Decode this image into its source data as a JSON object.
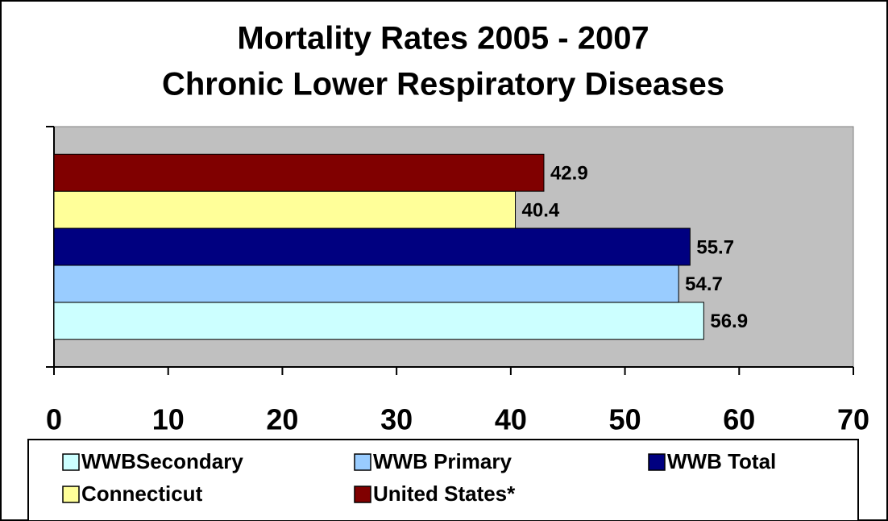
{
  "chart_data": {
    "type": "hbar",
    "title": "Mortality Rates 2005 - 2007",
    "subtitle": "Chronic Lower Respiratory Diseases",
    "categories": [
      null
    ],
    "series": [
      {
        "name": "WWBSecondary",
        "color": "#ccffff",
        "values": [
          56.9
        ]
      },
      {
        "name": "WWB Primary",
        "color": "#99ccff",
        "values": [
          54.7
        ]
      },
      {
        "name": "WWB Total",
        "color": "#000080",
        "values": [
          55.7
        ]
      },
      {
        "name": "Connecticut",
        "color": "#ffff99",
        "values": [
          40.4
        ]
      },
      {
        "name": "United States*",
        "color": "#800000",
        "values": [
          42.9
        ]
      }
    ],
    "xlim": [
      0,
      70
    ],
    "xticks": [
      0,
      10,
      20,
      30,
      40,
      50,
      60,
      70
    ],
    "legend": "bottom",
    "plot_background": "#c0c0c0"
  }
}
